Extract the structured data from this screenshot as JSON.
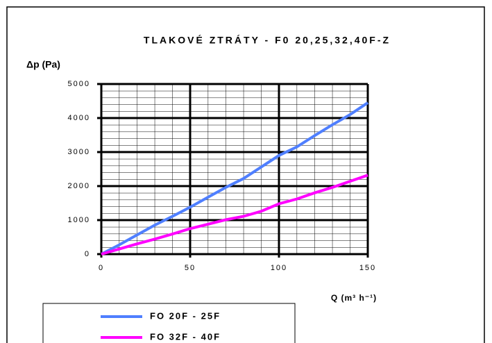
{
  "chart_data": {
    "type": "line",
    "title": "TLAKOVÉ ZTRÁTY  - F0 20,25,32,40F-Z",
    "y_label": "Δp (Pa)",
    "x_label": "Q (m³ h⁻¹)",
    "x": [
      0,
      10,
      20,
      30,
      40,
      50,
      60,
      70,
      80,
      90,
      100,
      110,
      120,
      130,
      140,
      150
    ],
    "series": [
      {
        "name": "FO 20F - 25F",
        "color": "#4f7fff",
        "values": [
          0,
          270,
          560,
          850,
          1110,
          1380,
          1670,
          1960,
          2220,
          2560,
          2900,
          3150,
          3480,
          3800,
          4100,
          4450
        ]
      },
      {
        "name": "FO 32F - 40F",
        "color": "#ff00ff",
        "values": [
          0,
          150,
          300,
          440,
          590,
          750,
          880,
          1010,
          1110,
          1260,
          1480,
          1620,
          1800,
          1960,
          2140,
          2320
        ]
      }
    ],
    "xlim": [
      0,
      150
    ],
    "xticks": [
      0,
      50,
      100,
      150
    ],
    "ylim": [
      0,
      5000
    ],
    "yticks": [
      0,
      1000,
      2000,
      3000,
      4000,
      5000
    ],
    "grid": true
  }
}
